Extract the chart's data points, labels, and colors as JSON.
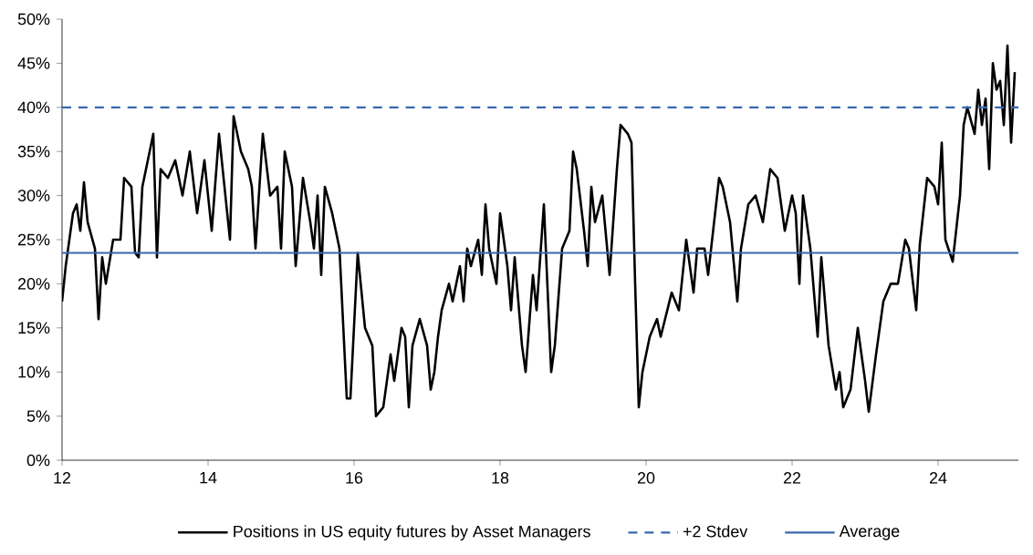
{
  "chart_data": {
    "type": "line",
    "x": [
      12.0,
      12.05,
      12.15,
      12.2,
      12.25,
      12.3,
      12.35,
      12.45,
      12.5,
      12.55,
      12.6,
      12.7,
      12.8,
      12.85,
      12.95,
      13.0,
      13.05,
      13.1,
      13.2,
      13.25,
      13.3,
      13.35,
      13.45,
      13.55,
      13.65,
      13.75,
      13.85,
      13.95,
      14.05,
      14.15,
      14.25,
      14.3,
      14.35,
      14.45,
      14.55,
      14.6,
      14.65,
      14.75,
      14.85,
      14.95,
      15.0,
      15.05,
      15.15,
      15.2,
      15.3,
      15.4,
      15.45,
      15.5,
      15.55,
      15.6,
      15.7,
      15.8,
      15.9,
      15.95,
      16.05,
      16.15,
      16.25,
      16.3,
      16.4,
      16.5,
      16.55,
      16.65,
      16.7,
      16.75,
      16.8,
      16.9,
      17.0,
      17.05,
      17.1,
      17.15,
      17.2,
      17.3,
      17.35,
      17.45,
      17.5,
      17.55,
      17.6,
      17.7,
      17.75,
      17.8,
      17.85,
      17.95,
      18.0,
      18.1,
      18.15,
      18.2,
      18.3,
      18.35,
      18.45,
      18.5,
      18.6,
      18.7,
      18.75,
      18.85,
      18.95,
      19.0,
      19.05,
      19.15,
      19.2,
      19.25,
      19.3,
      19.4,
      19.5,
      19.6,
      19.65,
      19.75,
      19.8,
      19.85,
      19.9,
      19.95,
      20.05,
      20.15,
      20.2,
      20.35,
      20.45,
      20.55,
      20.65,
      20.7,
      20.8,
      20.85,
      21.0,
      21.05,
      21.15,
      21.25,
      21.3,
      21.4,
      21.5,
      21.6,
      21.7,
      21.8,
      21.9,
      22.0,
      22.05,
      22.1,
      22.15,
      22.25,
      22.35,
      22.4,
      22.5,
      22.6,
      22.65,
      22.7,
      22.8,
      22.9,
      23.0,
      23.05,
      23.15,
      23.25,
      23.35,
      23.45,
      23.55,
      23.6,
      23.7,
      23.75,
      23.85,
      23.95,
      24.0,
      24.05,
      24.1,
      24.2,
      24.3,
      24.35,
      24.4,
      24.5,
      24.55,
      24.6,
      24.65,
      24.7,
      24.75,
      24.8,
      24.85,
      24.9,
      24.95,
      25.0,
      25.05
    ],
    "series": [
      {
        "name": "Positions in US equity futures by Asset Managers",
        "color": "#000000",
        "values": [
          18,
          22,
          28,
          29,
          26,
          31.5,
          27,
          24,
          16,
          23,
          20,
          25,
          25,
          32,
          31,
          23.5,
          23,
          31,
          35,
          37,
          23,
          33,
          32,
          34,
          30,
          35,
          28,
          34,
          26,
          37,
          29,
          25,
          39,
          35,
          33,
          31,
          24,
          37,
          30,
          31,
          24,
          35,
          31,
          22,
          32,
          27,
          24,
          30,
          21,
          31,
          28,
          24,
          7,
          7,
          23.5,
          15,
          13,
          5,
          6,
          12,
          9,
          15,
          14,
          6,
          13,
          16,
          13,
          8,
          10,
          14,
          17,
          20,
          18,
          22,
          18,
          24,
          22,
          25,
          21,
          29,
          24,
          20,
          28,
          22,
          17,
          23,
          13,
          10,
          21,
          17,
          29,
          10,
          13,
          24,
          26,
          35,
          33,
          26,
          22,
          31,
          27,
          30,
          21,
          33,
          38,
          37,
          36,
          20,
          6,
          10,
          14,
          16,
          14,
          19,
          17,
          25,
          19,
          24,
          24,
          21,
          32,
          31,
          27,
          18,
          24,
          29,
          30,
          27,
          33,
          32,
          26,
          30,
          28,
          20,
          30,
          24,
          14,
          23,
          13,
          8,
          10,
          6,
          8,
          15,
          9,
          5.5,
          12,
          18,
          20,
          20,
          25,
          24,
          17,
          24.5,
          32,
          31,
          29,
          36,
          25,
          22.5,
          30,
          38,
          40,
          37,
          42,
          38,
          41,
          33,
          45,
          42,
          43,
          38,
          47,
          36,
          44
        ]
      }
    ],
    "xlim": [
      12,
      25.1
    ],
    "xticks": [
      12,
      14,
      16,
      18,
      20,
      22,
      24
    ],
    "ylim": [
      0,
      50
    ],
    "yticks": [
      {
        "value": 0,
        "label": "0%"
      },
      {
        "value": 5,
        "label": "5%"
      },
      {
        "value": 10,
        "label": "10%"
      },
      {
        "value": 15,
        "label": "15%"
      },
      {
        "value": 20,
        "label": "20%"
      },
      {
        "value": 25,
        "label": "25%"
      },
      {
        "value": 30,
        "label": "30%"
      },
      {
        "value": 35,
        "label": "35%"
      },
      {
        "value": 40,
        "label": "40%"
      },
      {
        "value": 45,
        "label": "45%"
      },
      {
        "value": 50,
        "label": "50%"
      }
    ],
    "ref_lines": [
      {
        "axis": "y",
        "value": 40,
        "label": "+2 Stdev",
        "color": "#3a67b0",
        "line_style": "dashed"
      },
      {
        "axis": "y",
        "value": 23.5,
        "label": "Average",
        "color": "#3a67b0",
        "line_style": "solid"
      }
    ],
    "legend": "bottom",
    "grid": false
  }
}
